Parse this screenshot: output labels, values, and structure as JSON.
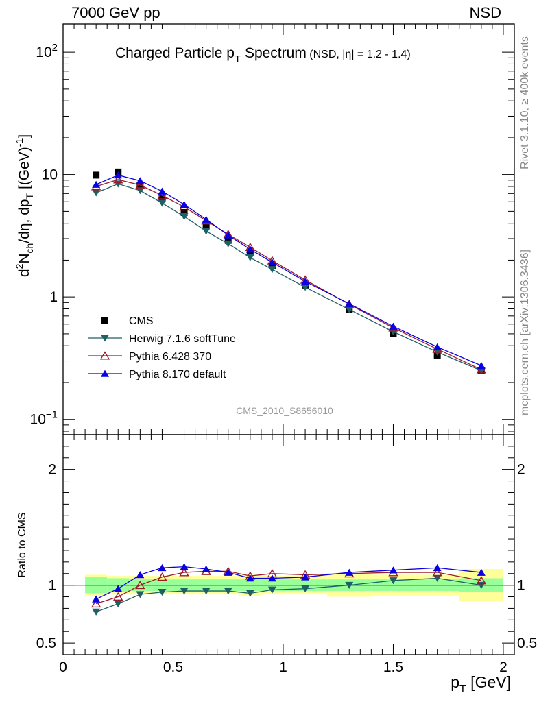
{
  "header": {
    "left": "7000 GeV pp",
    "right": "NSD"
  },
  "side": {
    "rivet": "Rivet 3.1.10, ≥ 400k events",
    "mcplots": "mcplots.cern.ch [arXiv:1306.3436]"
  },
  "chart_data": {
    "type": "line",
    "title_main": "Charged Particle p",
    "title_sub": "T",
    "title_main2": " Spectrum",
    "title_small": "(NSD, |η| = 1.2 - 1.4)",
    "ylabel": "d²N_ch/dη, dp_T [(GeV)⁻¹]",
    "ylabel_parts": [
      "d",
      "2",
      "N",
      "ch",
      "/dη, dp",
      "T",
      " [(GeV)",
      "-1",
      "]"
    ],
    "xlabel": "p",
    "xlabel_sub": "T",
    "xlabel_unit": " [GeV]",
    "ratio_ylabel": "Ratio to CMS",
    "watermark": "CMS_2010_S8656010",
    "xlim": [
      0,
      2.05
    ],
    "ylim_main": [
      0.075,
      170
    ],
    "ylim_ratio": [
      0.4,
      2.3
    ],
    "x_ticks": [
      0,
      0.5,
      1,
      1.5,
      2
    ],
    "x_tick_labels": [
      "0",
      "0.5",
      "1",
      "1.5",
      "2"
    ],
    "main_y_ticks": [
      {
        "v": 100,
        "base": "10",
        "exp": "2"
      },
      {
        "v": 10,
        "base": "10",
        "exp": ""
      },
      {
        "v": 1,
        "base": "1",
        "exp": ""
      },
      {
        "v": 0.1,
        "base": "10",
        "exp": "−1"
      }
    ],
    "ratio_y_ticks": [
      {
        "v": 0.5,
        "label": "0.5"
      },
      {
        "v": 1,
        "label": "1"
      },
      {
        "v": 2,
        "label": "2"
      }
    ],
    "x": [
      0.15,
      0.25,
      0.35,
      0.45,
      0.55,
      0.65,
      0.75,
      0.85,
      0.95,
      1.1,
      1.3,
      1.5,
      1.7,
      1.9
    ],
    "bin_edges": [
      0.1,
      0.2,
      0.3,
      0.4,
      0.5,
      0.6,
      0.7,
      0.8,
      0.9,
      1.0,
      1.2,
      1.4,
      1.6,
      1.8,
      2.0
    ],
    "cms": [
      9.9,
      10.5,
      8.1,
      6.4,
      4.9,
      3.8,
      2.9,
      2.3,
      1.8,
      1.25,
      0.79,
      0.5,
      0.335,
      0.25
    ],
    "band_inner": [
      0.07,
      0.06,
      0.05,
      0.05,
      0.05,
      0.05,
      0.05,
      0.05,
      0.05,
      0.05,
      0.05,
      0.05,
      0.05,
      0.06
    ],
    "band_outer": [
      0.09,
      0.08,
      0.08,
      0.08,
      0.08,
      0.08,
      0.08,
      0.09,
      0.08,
      0.08,
      0.1,
      0.09,
      0.09,
      0.14
    ],
    "series": [
      {
        "name": "CMS",
        "marker": "square",
        "color": "#000000",
        "values": [
          9.9,
          10.5,
          8.1,
          6.4,
          4.9,
          3.8,
          2.9,
          2.3,
          1.8,
          1.25,
          0.79,
          0.5,
          0.335,
          0.25
        ],
        "ratio": []
      },
      {
        "name": "Herwig 7.1.6 softTune",
        "marker": "triangle-down",
        "color": "#1f5f66",
        "values": [
          7.1,
          8.4,
          7.4,
          5.85,
          4.55,
          3.45,
          2.72,
          2.1,
          1.68,
          1.2,
          0.79,
          0.52,
          0.355,
          0.25
        ],
        "ratio": [
          0.77,
          0.84,
          0.92,
          0.94,
          0.95,
          0.95,
          0.95,
          0.93,
          0.96,
          0.97,
          1.0,
          1.04,
          1.06,
          1.0
        ]
      },
      {
        "name": "Pythia 6.428 370",
        "marker": "triangle-open",
        "color": "#9c1b2b",
        "values": [
          8.0,
          9.1,
          8.2,
          6.75,
          5.45,
          4.2,
          3.25,
          2.55,
          1.98,
          1.38,
          0.87,
          0.56,
          0.375,
          0.255
        ],
        "ratio": [
          0.84,
          0.9,
          1.0,
          1.07,
          1.11,
          1.12,
          1.12,
          1.08,
          1.1,
          1.09,
          1.1,
          1.11,
          1.11,
          1.04
        ]
      },
      {
        "name": "Pythia 8.170 default",
        "marker": "triangle-up",
        "color": "#0a00e0",
        "values": [
          8.3,
          9.9,
          8.9,
          7.3,
          5.7,
          4.3,
          3.2,
          2.45,
          1.92,
          1.34,
          0.88,
          0.575,
          0.39,
          0.275
        ],
        "ratio": [
          0.88,
          0.97,
          1.09,
          1.15,
          1.16,
          1.14,
          1.11,
          1.06,
          1.06,
          1.07,
          1.11,
          1.13,
          1.15,
          1.11
        ]
      }
    ]
  }
}
